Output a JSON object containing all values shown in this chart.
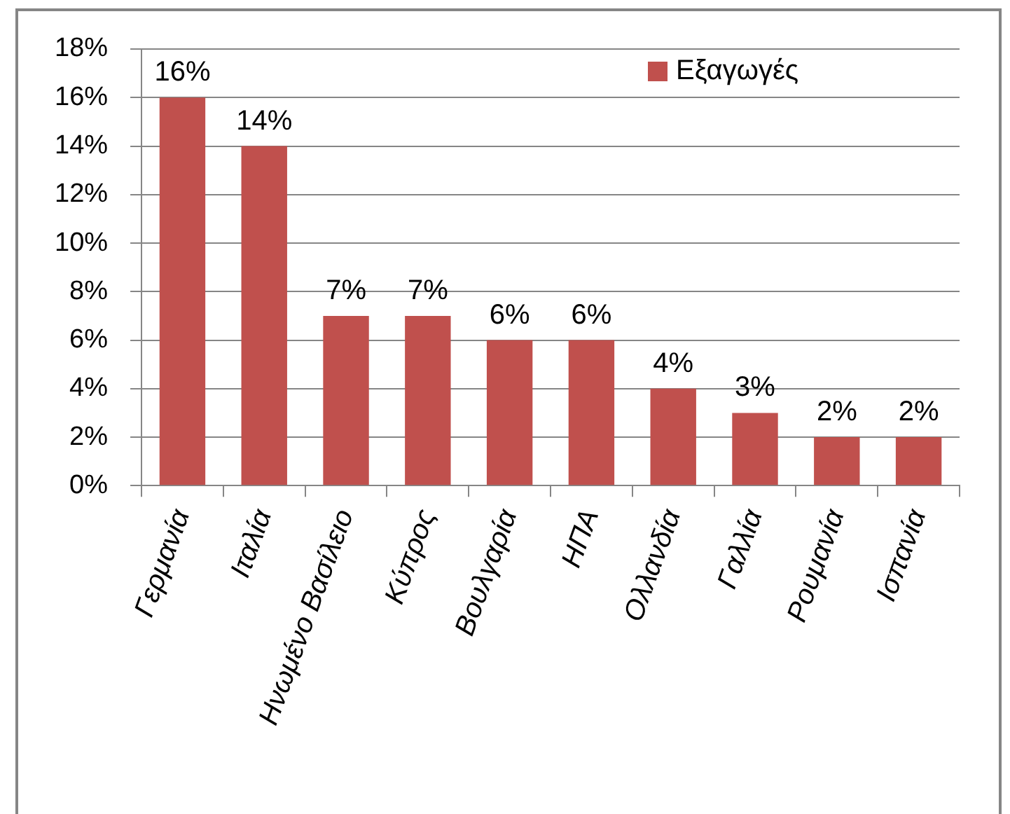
{
  "chart_data": {
    "type": "bar",
    "categories": [
      "Γερμανία",
      "Ιταλία",
      "Ηνωμένο Βασίλειο",
      "Κύπρος",
      "Βουλγαρία",
      "ΗΠΑ",
      "Ολλανδία",
      "Γαλλία",
      "Ρουμανία",
      "Ισπανία"
    ],
    "series": [
      {
        "name": "Εξαγωγές",
        "color": "#c0504d",
        "values": [
          16,
          14,
          7,
          7,
          6,
          6,
          4,
          3,
          2,
          2
        ],
        "value_labels": [
          "16%",
          "14%",
          "7%",
          "7%",
          "6%",
          "6%",
          "4%",
          "3%",
          "2%",
          "2%"
        ]
      }
    ],
    "ylim": [
      0,
      18
    ],
    "yticks": [
      {
        "value": 0,
        "label": "0%"
      },
      {
        "value": 2,
        "label": "2%"
      },
      {
        "value": 4,
        "label": "4%"
      },
      {
        "value": 6,
        "label": "6%"
      },
      {
        "value": 8,
        "label": "8%"
      },
      {
        "value": 10,
        "label": "10%"
      },
      {
        "value": 12,
        "label": "12%"
      },
      {
        "value": 14,
        "label": "14%"
      },
      {
        "value": 16,
        "label": "16%"
      },
      {
        "value": 18,
        "label": "18%"
      }
    ],
    "grid": "y",
    "legend": "top right"
  }
}
